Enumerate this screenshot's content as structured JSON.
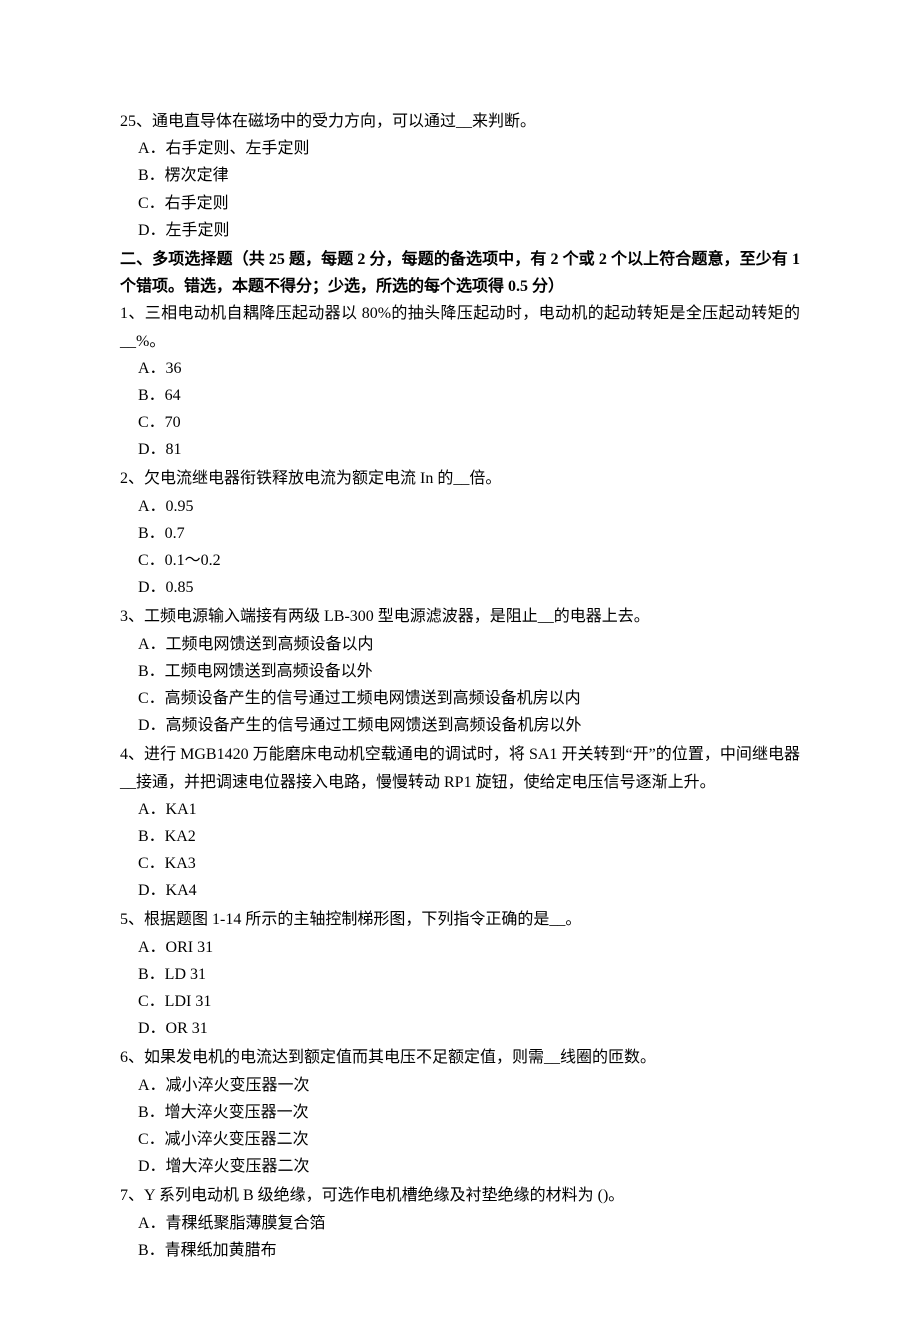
{
  "q25": {
    "text": "25、通电直导体在磁场中的受力方向，可以通过__来判断。",
    "options": {
      "a": "A．右手定则、左手定则",
      "b": "B．楞次定律",
      "c": "C．右手定则",
      "d": "D．左手定则"
    }
  },
  "section2": {
    "header": "二、多项选择题（共 25 题，每题 2 分，每题的备选项中，有 2 个或 2 个以上符合题意，至少有 1 个错项。错选，本题不得分；少选，所选的每个选项得 0.5 分）"
  },
  "mq1": {
    "text": "1、三相电动机自耦降压起动器以 80%的抽头降压起动时，电动机的起动转矩是全压起动转矩的__%。",
    "options": {
      "a": "A．36",
      "b": "B．64",
      "c": "C．70",
      "d": "D．81"
    }
  },
  "mq2": {
    "text": "2、欠电流继电器衔铁释放电流为额定电流 In 的__倍。",
    "options": {
      "a": "A．0.95",
      "b": "B．0.7",
      "c": "C．0.1～0.2",
      "d": "D．0.85"
    }
  },
  "mq3": {
    "text": "3、工频电源输入端接有两级 LB-300 型电源滤波器，是阻止__的电器上去。",
    "options": {
      "a": "A．工频电网馈送到高频设备以内",
      "b": "B．工频电网馈送到高频设备以外",
      "c": "C．高频设备产生的信号通过工频电网馈送到高频设备机房以内",
      "d": "D．高频设备产生的信号通过工频电网馈送到高频设备机房以外"
    }
  },
  "mq4": {
    "text": "4、进行 MGB1420 万能磨床电动机空载通电的调试时，将 SA1 开关转到“开”的位置，中间继电器__接通，并把调速电位器接入电路，慢慢转动 RP1 旋钮，使给定电压信号逐渐上升。",
    "options": {
      "a": "A．KA1",
      "b": "B．KA2",
      "c": "C．KA3",
      "d": "D．KA4"
    }
  },
  "mq5": {
    "text": "5、根据题图 1-14 所示的主轴控制梯形图，下列指令正确的是__。",
    "options": {
      "a": "A．ORI 31",
      "b": "B．LD 31",
      "c": "C．LDI 31",
      "d": "D．OR 31"
    }
  },
  "mq6": {
    "text": "6、如果发电机的电流达到额定值而其电压不足额定值，则需__线圈的匝数。",
    "options": {
      "a": "A．减小淬火变压器一次",
      "b": "B．增大淬火变压器一次",
      "c": "C．减小淬火变压器二次",
      "d": "D．增大淬火变压器二次"
    }
  },
  "mq7": {
    "text": "7、Y 系列电动机 B 级绝缘，可选作电机槽绝缘及衬垫绝缘的材料为 ()。",
    "options": {
      "a": "A．青稞纸聚脂薄膜复合箔",
      "b": "B．青稞纸加黄腊布"
    }
  }
}
